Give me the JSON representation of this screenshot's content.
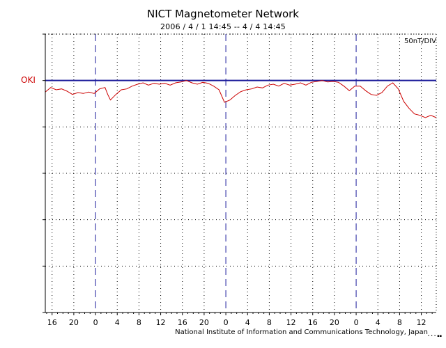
{
  "chart_data": {
    "type": "line",
    "title": "NICT Magnetometer Network",
    "subtitle": "2006 / 4 / 1   14:45 --  4 / 4   14:45",
    "scale_label": "50nT/DIV",
    "station": "OKI",
    "x_unit": "hours since 2006/4/1 14:45 (UT)",
    "xlim": [
      0,
      72
    ],
    "x_tick_positions": [
      1.25,
      5.25,
      9.25,
      13.25,
      17.25,
      21.25,
      25.25,
      29.25,
      33.25,
      37.25,
      41.25,
      45.25,
      49.25,
      53.25,
      57.25,
      61.25,
      65.25,
      69.25
    ],
    "x_tick_labels": [
      "16",
      "20",
      "0",
      "4",
      "8",
      "12",
      "16",
      "20",
      "0",
      "4",
      "8",
      "12",
      "16",
      "20",
      "0",
      "4",
      "8",
      "12"
    ],
    "day_boundaries": [
      9.25,
      33.25,
      57.25
    ],
    "y_unit": "divisions (50 nT/DIV) relative to OKI baseline",
    "ylim": [
      -5,
      1
    ],
    "grid": true,
    "series": [
      {
        "name": "OKI",
        "color": "#cc0000",
        "baseline_color": "#1a1a9a",
        "x": [
          0,
          1,
          2,
          3,
          4,
          5,
          6,
          7,
          8,
          9,
          10,
          11,
          11.5,
          12,
          13,
          14,
          15,
          16,
          17,
          18,
          19,
          20,
          21,
          22,
          23,
          24,
          25,
          26,
          27,
          28,
          29,
          30,
          31,
          32,
          33,
          34,
          35,
          36,
          37,
          38,
          39,
          40,
          41,
          42,
          43,
          44,
          45,
          46,
          47,
          48,
          49,
          50,
          51,
          52,
          53,
          54,
          55,
          56,
          57,
          58,
          59,
          60,
          61,
          62,
          63,
          64,
          65,
          66,
          67,
          68,
          69,
          70,
          71,
          72
        ],
        "y": [
          -0.25,
          -0.15,
          -0.2,
          -0.18,
          -0.23,
          -0.3,
          -0.26,
          -0.28,
          -0.25,
          -0.28,
          -0.18,
          -0.15,
          -0.3,
          -0.42,
          -0.3,
          -0.2,
          -0.18,
          -0.12,
          -0.08,
          -0.05,
          -0.1,
          -0.06,
          -0.08,
          -0.06,
          -0.1,
          -0.05,
          -0.03,
          0.0,
          -0.05,
          -0.08,
          -0.04,
          -0.06,
          -0.12,
          -0.2,
          -0.47,
          -0.42,
          -0.32,
          -0.24,
          -0.2,
          -0.18,
          -0.14,
          -0.16,
          -0.1,
          -0.08,
          -0.12,
          -0.06,
          -0.1,
          -0.08,
          -0.05,
          -0.1,
          -0.04,
          -0.02,
          -0.0,
          -0.03,
          -0.02,
          -0.04,
          -0.12,
          -0.22,
          -0.12,
          -0.12,
          -0.22,
          -0.3,
          -0.32,
          -0.26,
          -0.12,
          -0.05,
          -0.18,
          -0.45,
          -0.6,
          -0.72,
          -0.75,
          -0.8,
          -0.75,
          -0.8
        ]
      }
    ]
  },
  "footer": {
    "credit": "National Institute of Information and Communications Technology, Japan",
    "mark": "• • • ▪▪"
  }
}
